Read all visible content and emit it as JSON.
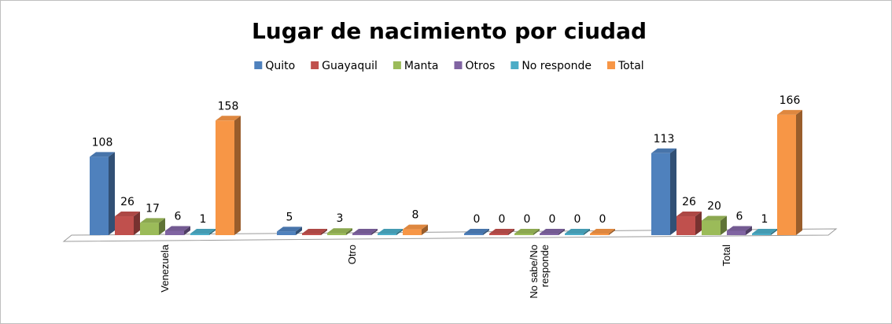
{
  "chart_data": {
    "type": "bar3d",
    "title": "Lugar de nacimiento por ciudad",
    "categories": [
      "Venezuela",
      "Otro",
      "No sabe/No responde",
      "Total"
    ],
    "series": [
      {
        "name": "Quito",
        "color": "#4f81bd",
        "values": [
          108,
          5,
          0,
          113
        ],
        "value_labels": [
          "108",
          "5",
          "0",
          "113"
        ]
      },
      {
        "name": "Guayaquil",
        "color": "#c0504d",
        "values": [
          26,
          0,
          0,
          26
        ],
        "value_labels": [
          "26",
          null,
          "0",
          "26"
        ]
      },
      {
        "name": "Manta",
        "color": "#9bbb59",
        "values": [
          17,
          3,
          0,
          20
        ],
        "value_labels": [
          "17",
          "3",
          "0",
          "20"
        ]
      },
      {
        "name": "Otros",
        "color": "#8064a2",
        "values": [
          6,
          0,
          0,
          6
        ],
        "value_labels": [
          "6",
          null,
          "0",
          "6"
        ]
      },
      {
        "name": "No responde",
        "color": "#4bacc6",
        "values": [
          1,
          0,
          0,
          1
        ],
        "value_labels": [
          "1",
          null,
          "0",
          "1"
        ]
      },
      {
        "name": "Total",
        "color": "#f79646",
        "values": [
          158,
          8,
          0,
          166
        ],
        "value_labels": [
          "158",
          "8",
          "0",
          "166"
        ]
      }
    ],
    "ylim": [
      0,
      180
    ],
    "legend": "top"
  }
}
